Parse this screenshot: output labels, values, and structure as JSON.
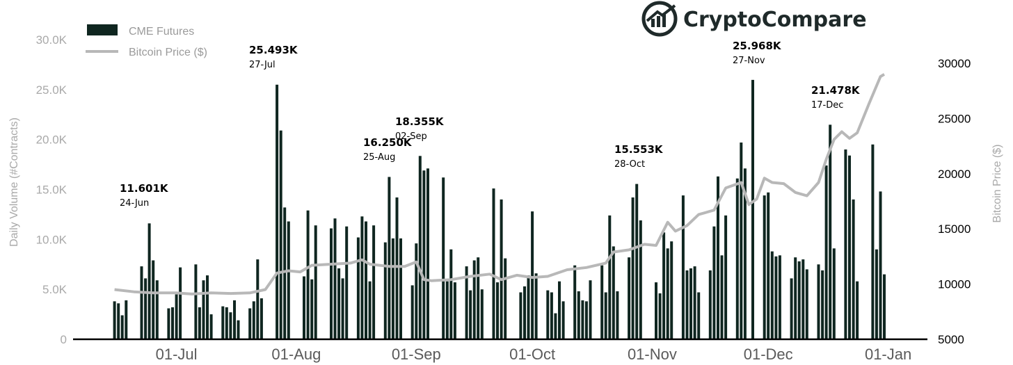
{
  "brand": {
    "name": "CryptoCompare",
    "logo_icon": "chart-trend-logo-icon"
  },
  "chart_data": {
    "type": "bar",
    "xlabel": "",
    "ylabel_left": "Daily Volume (#Contracts)",
    "ylabel_right": "Bitcoin Price ($)",
    "ylim_left": [
      0,
      30000
    ],
    "ylim_right": [
      5000,
      30000
    ],
    "yticks_left": [
      "0",
      "5.0K",
      "10.0K",
      "15.0K",
      "20.0K",
      "25.0K",
      "30.0K"
    ],
    "yticks_right": [
      "5000",
      "10000",
      "15000",
      "20000",
      "25000",
      "30000"
    ],
    "xticks": [
      "01-Jul",
      "01-Aug",
      "01-Sep",
      "01-Oct",
      "01-Nov",
      "01-Dec",
      "01-Jan"
    ],
    "legend_position": "top-left",
    "grid": false,
    "colors": {
      "bars": "#0f2620",
      "price_line": "#b8b8b8",
      "axis": "#000000"
    },
    "series": [
      {
        "name": "CME Futures",
        "type": "bar",
        "points": [
          [
            "2020-06-15",
            3800
          ],
          [
            "2020-06-16",
            3600
          ],
          [
            "2020-06-17",
            2400
          ],
          [
            "2020-06-18",
            3900
          ],
          [
            "2020-06-22",
            7300
          ],
          [
            "2020-06-23",
            6100
          ],
          [
            "2020-06-24",
            11601
          ],
          [
            "2020-06-25",
            7900
          ],
          [
            "2020-06-26",
            5900
          ],
          [
            "2020-06-29",
            3100
          ],
          [
            "2020-06-30",
            3200
          ],
          [
            "2020-07-01",
            4500
          ],
          [
            "2020-07-02",
            7200
          ],
          [
            "2020-07-06",
            7500
          ],
          [
            "2020-07-07",
            3200
          ],
          [
            "2020-07-08",
            5900
          ],
          [
            "2020-07-09",
            6400
          ],
          [
            "2020-07-10",
            2500
          ],
          [
            "2020-07-13",
            3300
          ],
          [
            "2020-07-14",
            3200
          ],
          [
            "2020-07-15",
            2700
          ],
          [
            "2020-07-16",
            3900
          ],
          [
            "2020-07-17",
            1900
          ],
          [
            "2020-07-20",
            3100
          ],
          [
            "2020-07-21",
            3800
          ],
          [
            "2020-07-22",
            8000
          ],
          [
            "2020-07-23",
            4100
          ],
          [
            "2020-07-27",
            25493
          ],
          [
            "2020-07-28",
            20900
          ],
          [
            "2020-07-29",
            13200
          ],
          [
            "2020-07-30",
            11800
          ],
          [
            "2020-08-03",
            6300
          ],
          [
            "2020-08-04",
            12900
          ],
          [
            "2020-08-05",
            6000
          ],
          [
            "2020-08-06",
            11400
          ],
          [
            "2020-08-10",
            11100
          ],
          [
            "2020-08-11",
            12100
          ],
          [
            "2020-08-12",
            7100
          ],
          [
            "2020-08-13",
            6100
          ],
          [
            "2020-08-14",
            11300
          ],
          [
            "2020-08-17",
            10200
          ],
          [
            "2020-08-18",
            12300
          ],
          [
            "2020-08-19",
            11800
          ],
          [
            "2020-08-20",
            5800
          ],
          [
            "2020-08-21",
            11400
          ],
          [
            "2020-08-24",
            9700
          ],
          [
            "2020-08-25",
            16250
          ],
          [
            "2020-08-26",
            10100
          ],
          [
            "2020-08-27",
            14200
          ],
          [
            "2020-08-28",
            10100
          ],
          [
            "2020-08-31",
            5400
          ],
          [
            "2020-09-01",
            9600
          ],
          [
            "2020-09-02",
            18355
          ],
          [
            "2020-09-03",
            16900
          ],
          [
            "2020-09-04",
            17100
          ],
          [
            "2020-09-08",
            16200
          ],
          [
            "2020-09-09",
            5800
          ],
          [
            "2020-09-10",
            9000
          ],
          [
            "2020-09-11",
            5700
          ],
          [
            "2020-09-14",
            7300
          ],
          [
            "2020-09-15",
            4900
          ],
          [
            "2020-09-16",
            7900
          ],
          [
            "2020-09-17",
            8200
          ],
          [
            "2020-09-18",
            5000
          ],
          [
            "2020-09-21",
            15100
          ],
          [
            "2020-09-22",
            5700
          ],
          [
            "2020-09-23",
            14000
          ],
          [
            "2020-09-24",
            8100
          ],
          [
            "2020-09-28",
            4700
          ],
          [
            "2020-09-29",
            5300
          ],
          [
            "2020-09-30",
            6400
          ],
          [
            "2020-10-01",
            12800
          ],
          [
            "2020-10-02",
            6600
          ],
          [
            "2020-10-05",
            4900
          ],
          [
            "2020-10-06",
            4700
          ],
          [
            "2020-10-07",
            2600
          ],
          [
            "2020-10-08",
            5800
          ],
          [
            "2020-10-09",
            3800
          ],
          [
            "2020-10-12",
            7400
          ],
          [
            "2020-10-13",
            4800
          ],
          [
            "2020-10-14",
            3900
          ],
          [
            "2020-10-15",
            3800
          ],
          [
            "2020-10-16",
            5900
          ],
          [
            "2020-10-19",
            7400
          ],
          [
            "2020-10-20",
            4700
          ],
          [
            "2020-10-21",
            12400
          ],
          [
            "2020-10-22",
            9300
          ],
          [
            "2020-10-23",
            4800
          ],
          [
            "2020-10-26",
            8200
          ],
          [
            "2020-10-27",
            14200
          ],
          [
            "2020-10-28",
            15553
          ],
          [
            "2020-10-29",
            11900
          ],
          [
            "2020-11-02",
            5700
          ],
          [
            "2020-11-03",
            4600
          ],
          [
            "2020-11-04",
            10700
          ],
          [
            "2020-11-05",
            9100
          ],
          [
            "2020-11-06",
            9800
          ],
          [
            "2020-11-09",
            14400
          ],
          [
            "2020-11-10",
            6900
          ],
          [
            "2020-11-11",
            7100
          ],
          [
            "2020-11-12",
            7300
          ],
          [
            "2020-11-13",
            4700
          ],
          [
            "2020-11-16",
            6900
          ],
          [
            "2020-11-17",
            11300
          ],
          [
            "2020-11-18",
            16300
          ],
          [
            "2020-11-19",
            8400
          ],
          [
            "2020-11-20",
            12400
          ],
          [
            "2020-11-23",
            16100
          ],
          [
            "2020-11-24",
            19700
          ],
          [
            "2020-11-25",
            17100
          ],
          [
            "2020-11-27",
            25968
          ],
          [
            "2020-11-30",
            14400
          ],
          [
            "2020-12-01",
            14700
          ],
          [
            "2020-12-02",
            8800
          ],
          [
            "2020-12-03",
            8300
          ],
          [
            "2020-12-04",
            8400
          ],
          [
            "2020-12-07",
            6100
          ],
          [
            "2020-12-08",
            8200
          ],
          [
            "2020-12-09",
            7800
          ],
          [
            "2020-12-10",
            8000
          ],
          [
            "2020-12-11",
            7000
          ],
          [
            "2020-12-14",
            7500
          ],
          [
            "2020-12-15",
            6900
          ],
          [
            "2020-12-16",
            17400
          ],
          [
            "2020-12-17",
            21478
          ],
          [
            "2020-12-18",
            9100
          ],
          [
            "2020-12-21",
            19000
          ],
          [
            "2020-12-22",
            18400
          ],
          [
            "2020-12-23",
            14000
          ],
          [
            "2020-12-24",
            5800
          ],
          [
            "2020-12-28",
            19500
          ],
          [
            "2020-12-29",
            9000
          ],
          [
            "2020-12-30",
            14800
          ],
          [
            "2020-12-31",
            6500
          ]
        ]
      },
      {
        "name": "Bitcoin Price ($)",
        "type": "line",
        "points": [
          [
            "2020-06-15",
            9500
          ],
          [
            "2020-06-20",
            9300
          ],
          [
            "2020-06-25",
            9200
          ],
          [
            "2020-07-01",
            9200
          ],
          [
            "2020-07-05",
            9100
          ],
          [
            "2020-07-10",
            9200
          ],
          [
            "2020-07-15",
            9150
          ],
          [
            "2020-07-20",
            9200
          ],
          [
            "2020-07-24",
            9500
          ],
          [
            "2020-07-27",
            11000
          ],
          [
            "2020-07-30",
            11200
          ],
          [
            "2020-08-02",
            11100
          ],
          [
            "2020-08-05",
            11700
          ],
          [
            "2020-08-10",
            11800
          ],
          [
            "2020-08-15",
            11900
          ],
          [
            "2020-08-18",
            12200
          ],
          [
            "2020-08-20",
            11800
          ],
          [
            "2020-08-25",
            11600
          ],
          [
            "2020-08-29",
            11600
          ],
          [
            "2020-09-01",
            12000
          ],
          [
            "2020-09-03",
            10400
          ],
          [
            "2020-09-05",
            10300
          ],
          [
            "2020-09-10",
            10400
          ],
          [
            "2020-09-15",
            10700
          ],
          [
            "2020-09-20",
            10900
          ],
          [
            "2020-09-23",
            10400
          ],
          [
            "2020-09-27",
            10800
          ],
          [
            "2020-10-01",
            10600
          ],
          [
            "2020-10-05",
            10700
          ],
          [
            "2020-10-10",
            11300
          ],
          [
            "2020-10-15",
            11500
          ],
          [
            "2020-10-20",
            11900
          ],
          [
            "2020-10-22",
            12900
          ],
          [
            "2020-10-26",
            13100
          ],
          [
            "2020-10-30",
            13600
          ],
          [
            "2020-11-02",
            13500
          ],
          [
            "2020-11-05",
            15600
          ],
          [
            "2020-11-07",
            14800
          ],
          [
            "2020-11-10",
            15300
          ],
          [
            "2020-11-13",
            16300
          ],
          [
            "2020-11-17",
            16700
          ],
          [
            "2020-11-20",
            18700
          ],
          [
            "2020-11-24",
            19200
          ],
          [
            "2020-11-26",
            17200
          ],
          [
            "2020-11-28",
            17700
          ],
          [
            "2020-11-30",
            19600
          ],
          [
            "2020-12-02",
            19200
          ],
          [
            "2020-12-05",
            19100
          ],
          [
            "2020-12-08",
            18300
          ],
          [
            "2020-12-11",
            18000
          ],
          [
            "2020-12-14",
            19200
          ],
          [
            "2020-12-16",
            21300
          ],
          [
            "2020-12-18",
            23100
          ],
          [
            "2020-12-20",
            23800
          ],
          [
            "2020-12-22",
            23200
          ],
          [
            "2020-12-24",
            23700
          ],
          [
            "2020-12-27",
            26300
          ],
          [
            "2020-12-30",
            28800
          ],
          [
            "2020-12-31",
            29000
          ]
        ]
      }
    ],
    "annotations": [
      {
        "value": "11.601K",
        "date": "24-Jun"
      },
      {
        "value": "25.493K",
        "date": "27-Jul"
      },
      {
        "value": "16.250K",
        "date": "25-Aug"
      },
      {
        "value": "18.355K",
        "date": "02-Sep"
      },
      {
        "value": "15.553K",
        "date": "28-Oct"
      },
      {
        "value": "25.968K",
        "date": "27-Nov"
      },
      {
        "value": "21.478K",
        "date": "17-Dec"
      }
    ]
  }
}
